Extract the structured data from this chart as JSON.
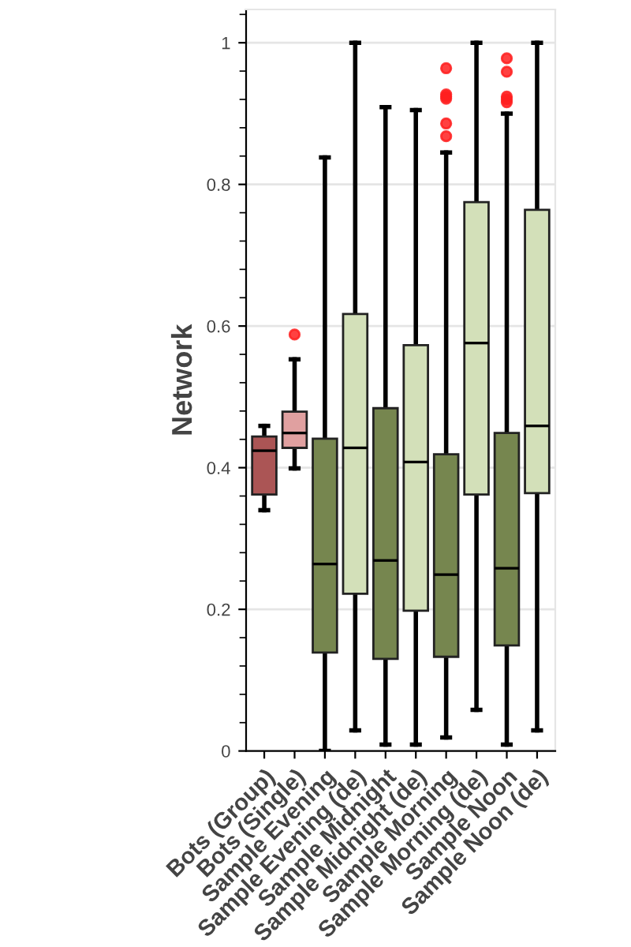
{
  "chart_data": {
    "type": "box",
    "ylabel": "Network",
    "categories": [
      "Bots (Group)",
      "Bots (Single)",
      "Sample Evening",
      "Sample Evening (de)",
      "Sample Midnight",
      "Sample Midnight (de)",
      "Sample Morning",
      "Sample Morning (de)",
      "Sample Noon",
      "Sample Noon (de)"
    ],
    "colors": [
      "#ab5555",
      "#e0a0a0",
      "#76864f",
      "#d3e0b9",
      "#76864f",
      "#d3e0b9",
      "#76864f",
      "#d3e0b9",
      "#76864f",
      "#d3e0b9"
    ],
    "boxes": [
      {
        "low": 0.34,
        "q1": 0.362,
        "median": 0.424,
        "q3": 0.444,
        "high": 0.459
      },
      {
        "low": 0.399,
        "q1": 0.428,
        "median": 0.449,
        "q3": 0.479,
        "high": 0.553,
        "outliers": [
          0.588
        ]
      },
      {
        "low": 0.0,
        "q1": 0.139,
        "median": 0.264,
        "q3": 0.441,
        "high": 0.838
      },
      {
        "low": 0.029,
        "q1": 0.222,
        "median": 0.428,
        "q3": 0.617,
        "high": 1.0
      },
      {
        "low": 0.009,
        "q1": 0.13,
        "median": 0.269,
        "q3": 0.484,
        "high": 0.909
      },
      {
        "low": 0.009,
        "q1": 0.198,
        "median": 0.408,
        "q3": 0.573,
        "high": 0.905
      },
      {
        "low": 0.019,
        "q1": 0.133,
        "median": 0.249,
        "q3": 0.419,
        "high": 0.845,
        "outliers": [
          0.964,
          0.927,
          0.924,
          0.921,
          0.886,
          0.868
        ]
      },
      {
        "low": 0.058,
        "q1": 0.362,
        "median": 0.576,
        "q3": 0.775,
        "high": 1.0
      },
      {
        "low": 0.009,
        "q1": 0.149,
        "median": 0.258,
        "q3": 0.449,
        "high": 0.9,
        "outliers": [
          0.978,
          0.959,
          0.924,
          0.92,
          0.916
        ]
      },
      {
        "low": 0.029,
        "q1": 0.364,
        "median": 0.459,
        "q3": 0.764,
        "high": 1.0
      }
    ],
    "ylim": [
      0,
      1.047
    ],
    "yticks": [
      0,
      0.2,
      0.4,
      0.6,
      0.8,
      1
    ],
    "grid": "y"
  }
}
